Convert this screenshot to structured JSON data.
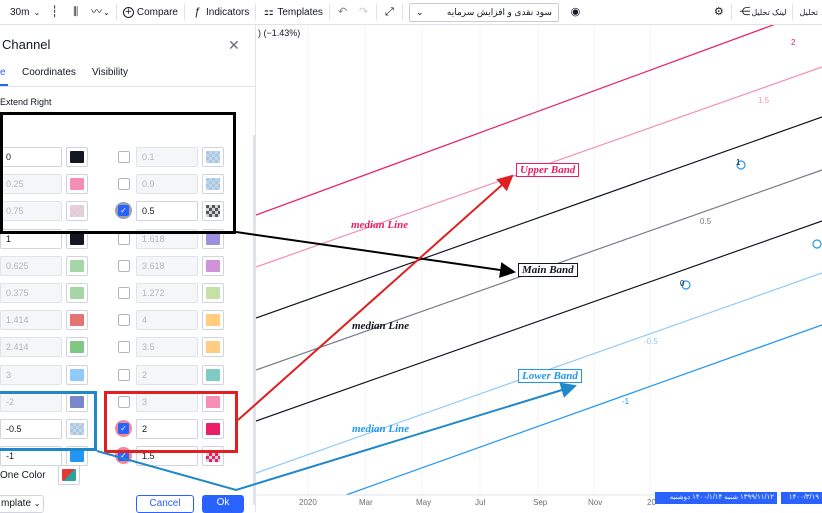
{
  "toolbar": {
    "interval": "30m",
    "compare_label": "Compare",
    "indicators_label": "Indicators",
    "templates_label": "Templates",
    "symbol_dropdown": "سود نقدی و افزایش سرمایه",
    "link_label": "لینک تحلیل",
    "analysis_label": "تحلیل"
  },
  "chart": {
    "pct_change": ") (−1.43%)",
    "labels": {
      "upper_band": "Upper Band",
      "main_band": "Main Band",
      "lower_band": "Lower Band",
      "median_line_top": "median Line",
      "median_line_mid": "median Line",
      "median_line_bottom": "median Line"
    },
    "level_labels": {
      "l2": "2",
      "l15": "1.5",
      "l1": "1",
      "l05": "0.5",
      "l0": "0",
      "lm05": "-0.5",
      "lm1": "-1"
    },
    "x_axis": [
      "2020",
      "Mar",
      "May",
      "Jul",
      "Sep",
      "Nov",
      "20"
    ],
    "date_badges": {
      "b1": "۱۳۹۹/۱۱/۱۲  شنبه ۱۴۰۰/۱/۱۴  دوشنبه",
      "b2": "۱۴۰۰/۳/۱۹ "
    },
    "colors": {
      "pink_dark": "#e91e63",
      "pink_light": "#f48fb1",
      "black": "#131722",
      "gray": "#787b86",
      "blue": "#2196f3",
      "light_blue": "#90caf9",
      "red_arrow": "#e02020",
      "box_black": "#000000",
      "box_blue": "#1e88c8",
      "box_red": "#e02020"
    }
  },
  "dialog": {
    "title": "Channel",
    "tabs": [
      "e",
      "Coordinates",
      "Visibility"
    ],
    "extend_right": "Extend Right",
    "left_levels": [
      {
        "value": "0",
        "disabled": false,
        "color": "#131722"
      },
      {
        "value": "0.25",
        "disabled": true,
        "color": "#f48fb1"
      },
      {
        "value": "0.75",
        "disabled": true,
        "color": "checker-pink"
      },
      {
        "value": "1",
        "disabled": false,
        "color": "#131722"
      },
      {
        "value": "0.625",
        "disabled": true,
        "color": "#a5d6a7"
      },
      {
        "value": "0.375",
        "disabled": true,
        "color": "#a5d6a7"
      },
      {
        "value": "1.414",
        "disabled": true,
        "color": "#e57373"
      },
      {
        "value": "2.414",
        "disabled": true,
        "color": "#81c784"
      },
      {
        "value": "3",
        "disabled": true,
        "color": "#90caf9"
      },
      {
        "value": "-2",
        "disabled": true,
        "color": "#7986cb"
      },
      {
        "value": "-0.5",
        "disabled": false,
        "color": "checker-blue"
      },
      {
        "value": "-1",
        "disabled": false,
        "color": "#2196f3"
      }
    ],
    "right_levels": [
      {
        "value": "0.1",
        "checked": false,
        "color": "checker-blue"
      },
      {
        "value": "0.9",
        "checked": false,
        "color": "checker-blue"
      },
      {
        "value": "0.5",
        "checked": true,
        "color": "checker-dark"
      },
      {
        "value": "1.618",
        "checked": false,
        "color": "#9c8fe0"
      },
      {
        "value": "3.618",
        "checked": false,
        "color": "#ce93d8"
      },
      {
        "value": "1.272",
        "checked": false,
        "color": "#c5e1a5"
      },
      {
        "value": "4",
        "checked": false,
        "color": "#ffcc80"
      },
      {
        "value": "3.5",
        "checked": false,
        "color": "#ffcc80"
      },
      {
        "value": "2",
        "checked": false,
        "color": "#80cbc4"
      },
      {
        "value": "3",
        "checked": false,
        "color": "#f48fb1"
      },
      {
        "value": "2",
        "checked": true,
        "color": "#e91e63"
      },
      {
        "value": "1.5",
        "checked": true,
        "color": "checker-pink-dark"
      }
    ],
    "one_color": "One Color",
    "template_label": "mplate",
    "cancel_label": "Cancel",
    "ok_label": "Ok"
  }
}
